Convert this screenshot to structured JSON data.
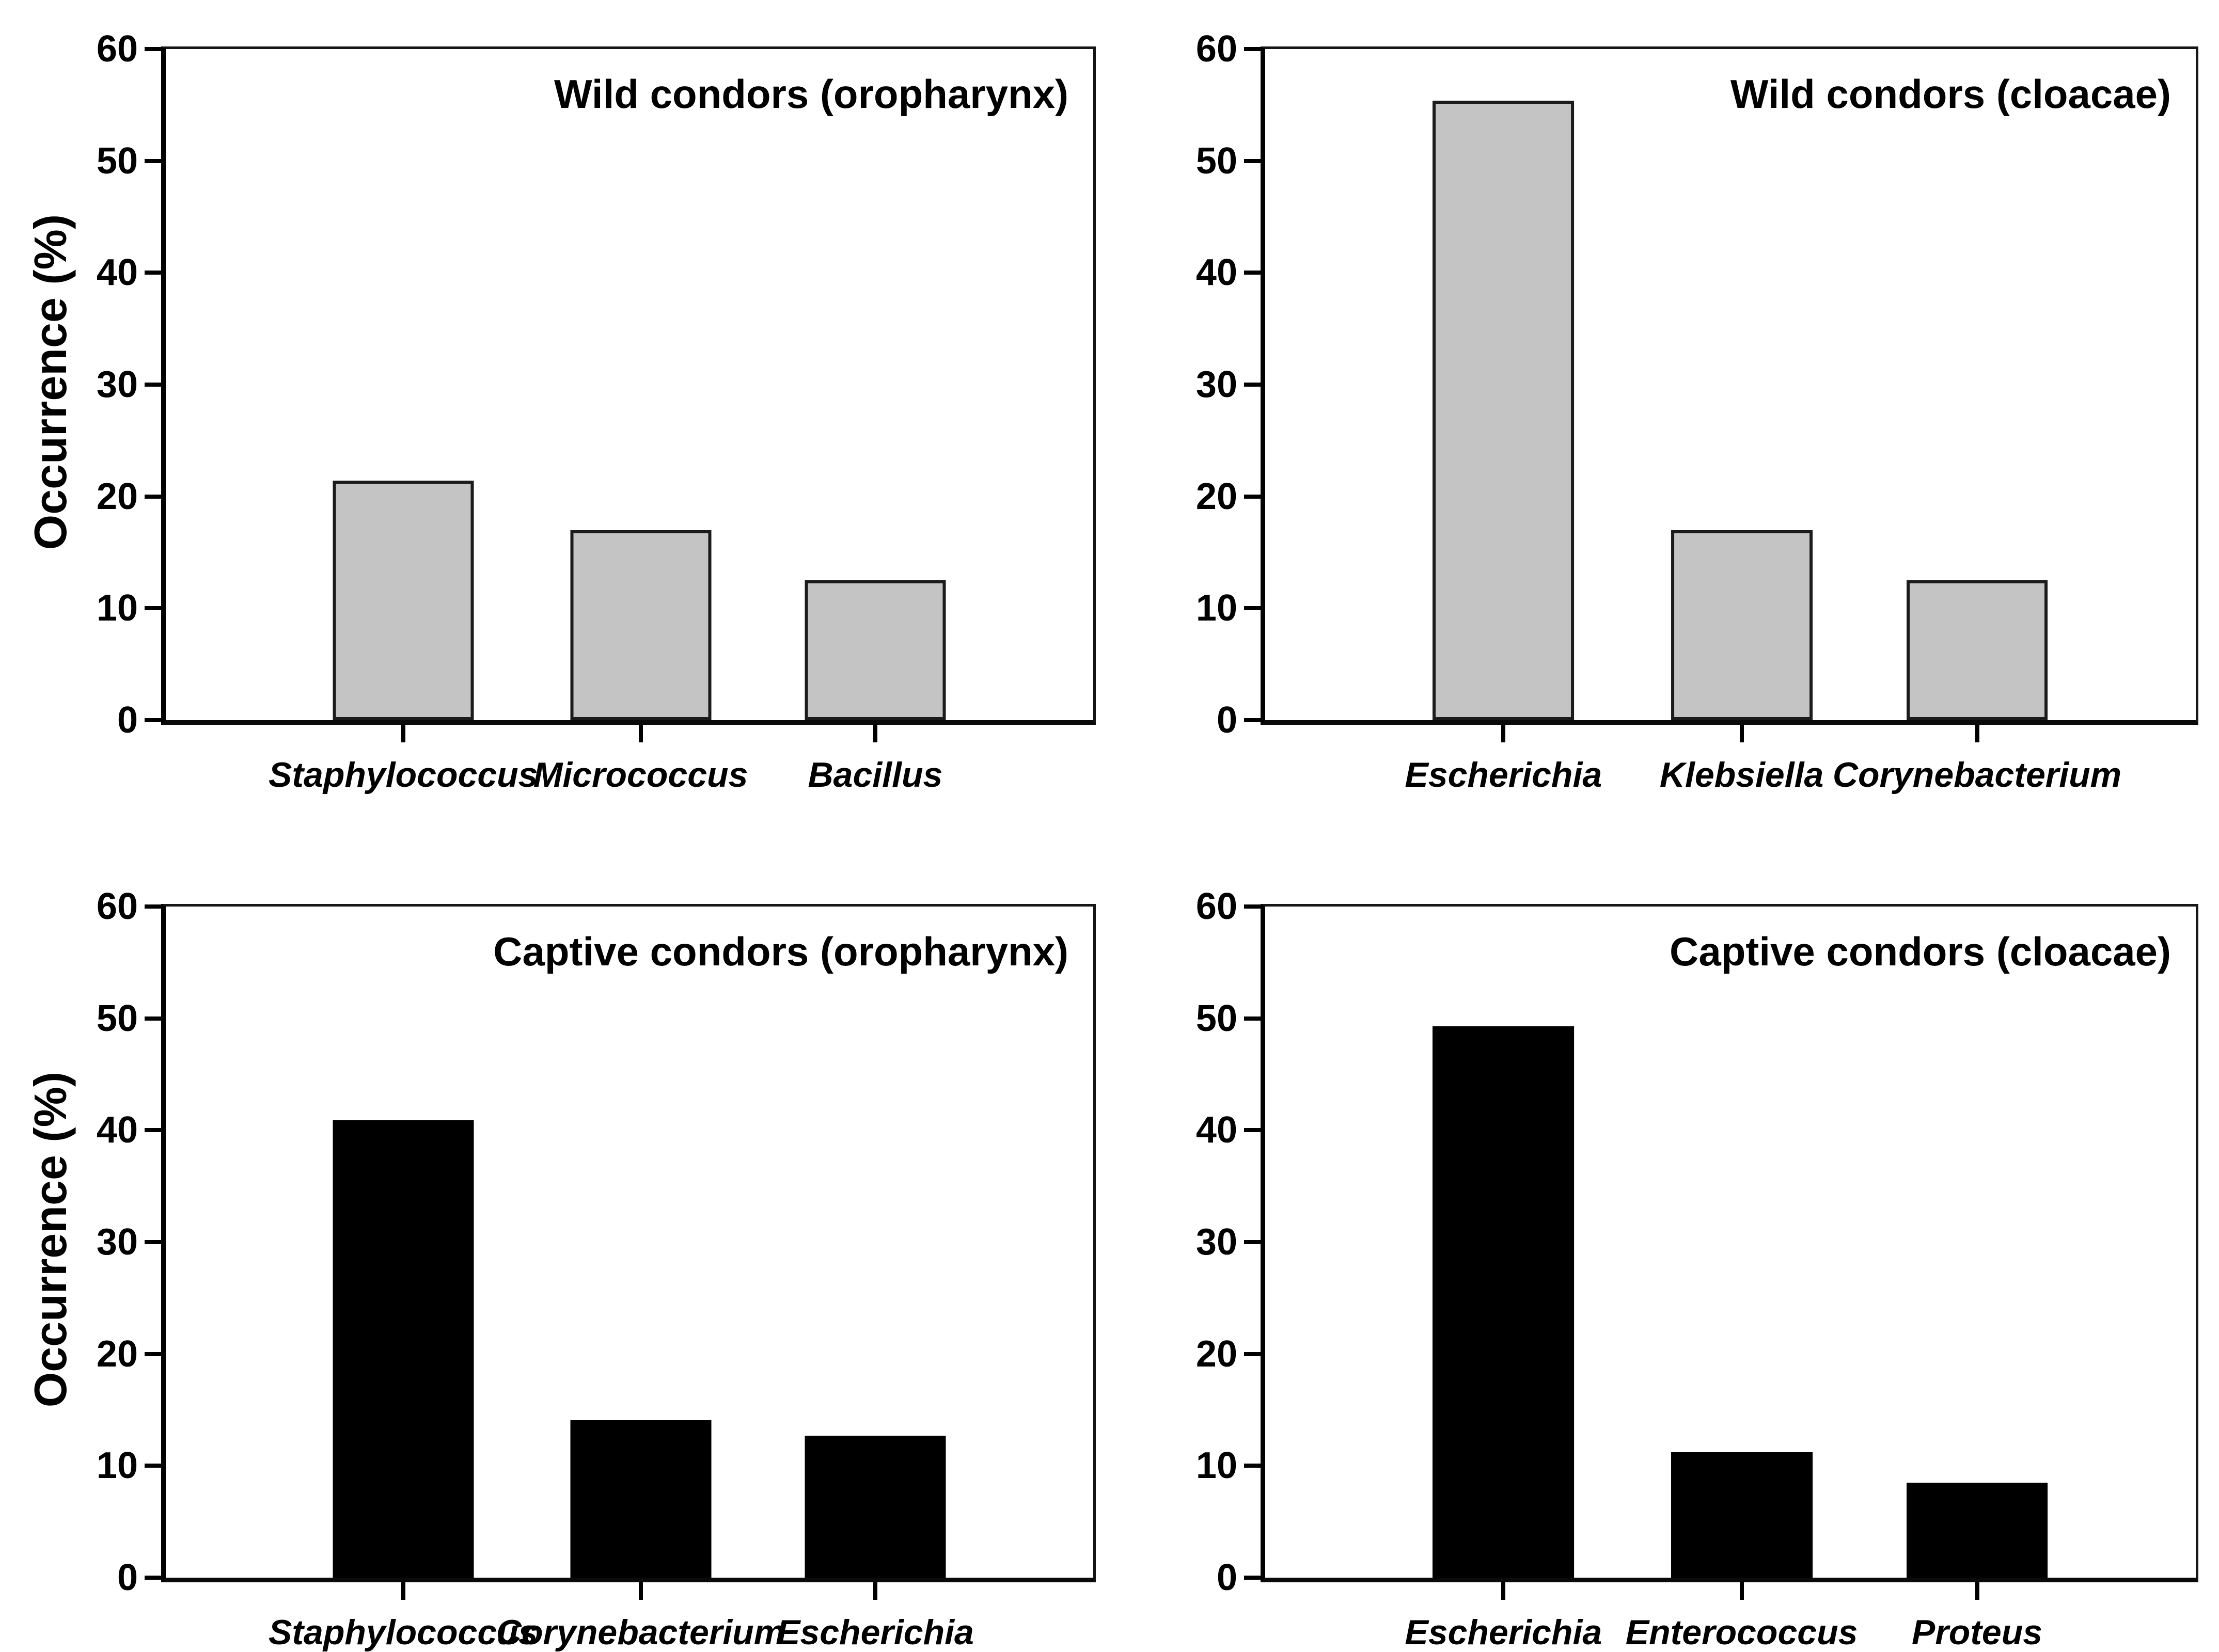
{
  "figure": {
    "background": "#ffffff",
    "axis_color": "#000000",
    "shared_ylabel": "Occurrence (%)",
    "wild_bar_fill": "#c4c4c4",
    "wild_bar_edge": "#1b1b1b",
    "captive_bar_fill": "#000000",
    "captive_bar_edge": "#000000"
  },
  "chart_data": [
    {
      "type": "bar",
      "title": "Wild condors (oropharynx)",
      "categories": [
        "Staphylococcus",
        "Micrococcus",
        "Bacillus"
      ],
      "values": [
        21.4,
        17.0,
        12.5
      ],
      "ylabel": "Occurrence (%)",
      "xlabel": "",
      "ylim": [
        0,
        60
      ],
      "yticks": [
        0,
        10,
        20,
        30,
        40,
        50,
        60
      ],
      "bar_fill": "#c4c4c4",
      "bar_edge": "#1b1b1b",
      "grid": false,
      "legend": "none",
      "bar_centers_frac": [
        0.256,
        0.512,
        0.765
      ]
    },
    {
      "type": "bar",
      "title": "Wild condors (cloacae)",
      "categories": [
        "Escherichia",
        "Klebsiella",
        "Corynebacterium"
      ],
      "values": [
        55.4,
        17.0,
        12.5
      ],
      "ylabel": "",
      "xlabel": "",
      "ylim": [
        0,
        60
      ],
      "yticks": [
        0,
        10,
        20,
        30,
        40,
        50,
        60
      ],
      "bar_fill": "#c4c4c4",
      "bar_edge": "#1b1b1b",
      "grid": false,
      "legend": "none",
      "bar_centers_frac": [
        0.256,
        0.512,
        0.765
      ]
    },
    {
      "type": "bar",
      "title": "Captive condors (oropharynx)",
      "categories": [
        "Staphylococcus",
        "Corynebacterium",
        "Escherichia"
      ],
      "values": [
        40.9,
        14.1,
        12.7
      ],
      "ylabel": "Occurrence (%)",
      "xlabel": "",
      "ylim": [
        0,
        60
      ],
      "yticks": [
        0,
        10,
        20,
        30,
        40,
        50,
        60
      ],
      "bar_fill": "#000000",
      "bar_edge": "#000000",
      "grid": false,
      "legend": "none",
      "bar_centers_frac": [
        0.256,
        0.512,
        0.765
      ]
    },
    {
      "type": "bar",
      "title": "Captive condors (cloacae)",
      "categories": [
        "Escherichia",
        "Enterococcus",
        "Proteus"
      ],
      "values": [
        49.3,
        11.2,
        8.5
      ],
      "ylabel": "",
      "xlabel": "",
      "ylim": [
        0,
        60
      ],
      "yticks": [
        0,
        10,
        20,
        30,
        40,
        50,
        60
      ],
      "bar_fill": "#000000",
      "bar_edge": "#000000",
      "grid": false,
      "legend": "none",
      "bar_centers_frac": [
        0.256,
        0.512,
        0.765
      ]
    }
  ]
}
